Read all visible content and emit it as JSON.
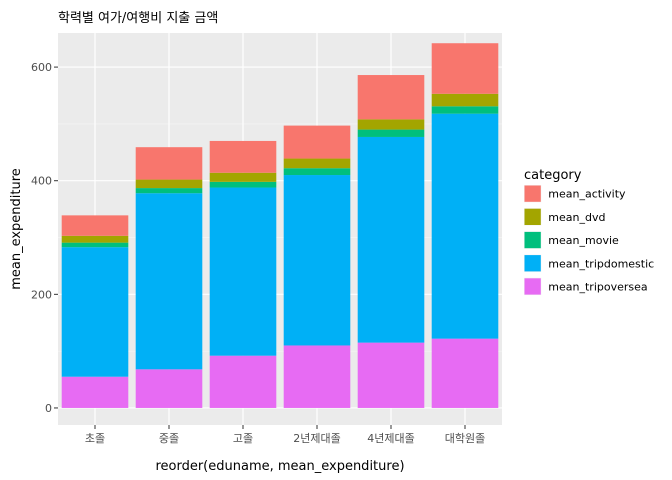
{
  "chart_data": {
    "type": "bar",
    "stacked": true,
    "title": "학력별 여가/여행비 지출 금액",
    "xlabel": "reorder(eduname, mean_expenditure)",
    "ylabel": "mean_expenditure",
    "ylim": [
      0,
      650
    ],
    "yticks": [
      0,
      200,
      400,
      600
    ],
    "categories": [
      "초졸",
      "중졸",
      "고졸",
      "2년제대졸",
      "4년제대졸",
      "대학원졸"
    ],
    "series": [
      {
        "name": "mean_tripoversea",
        "color": "#E76BF3",
        "values": [
          55,
          68,
          92,
          110,
          115,
          122
        ]
      },
      {
        "name": "mean_tripdomestic",
        "color": "#00B0F6",
        "values": [
          228,
          310,
          296,
          300,
          362,
          396
        ]
      },
      {
        "name": "mean_movie",
        "color": "#00BF7D",
        "values": [
          8,
          9,
          10,
          12,
          13,
          13
        ]
      },
      {
        "name": "mean_dvd",
        "color": "#A3A500",
        "values": [
          12,
          15,
          16,
          17,
          18,
          22
        ]
      },
      {
        "name": "mean_activity",
        "color": "#F8766D",
        "values": [
          36,
          57,
          56,
          58,
          78,
          89
        ]
      }
    ],
    "legend": {
      "title": "category",
      "position": "right",
      "items": [
        "mean_activity",
        "mean_dvd",
        "mean_movie",
        "mean_tripdomestic",
        "mean_tripoversea"
      ]
    },
    "grid": true
  }
}
